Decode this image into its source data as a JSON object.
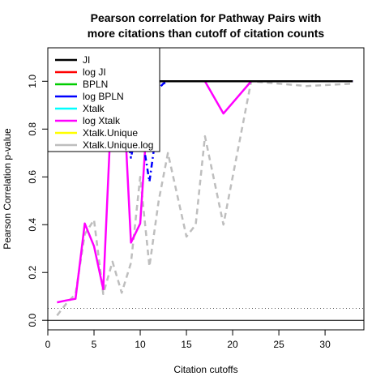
{
  "chart_data": {
    "type": "line",
    "title_lines": [
      "Pearson correlation for Pathway Pairs with",
      "more citations than cutoff of citation counts"
    ],
    "xlabel": "Citation cutoffs",
    "ylabel": "Pearson Correlation p-value",
    "xlim": [
      0,
      34.2
    ],
    "ylim": [
      -0.04,
      1.14
    ],
    "x_ticks": [
      0,
      5,
      10,
      15,
      20,
      25,
      30
    ],
    "y_ticks": [
      0.0,
      0.2,
      0.4,
      0.6,
      0.8,
      1.0
    ],
    "x_tick_labels": [
      "0",
      "5",
      "10",
      "15",
      "20",
      "25",
      "30"
    ],
    "y_tick_labels": [
      "0.0",
      "0.2",
      "0.4",
      "0.6",
      "0.8",
      "1.0"
    ],
    "reference_lines": [
      {
        "y": 0.05,
        "color": "#555555",
        "style": "dotted"
      },
      {
        "y": 0.0,
        "color": "#000000",
        "style": "solid"
      }
    ],
    "legend": {
      "position": "top-left",
      "entries": [
        "JI",
        "log JI",
        "BPLN",
        "log BPLN",
        "Xtalk",
        "log Xtalk",
        "Xtalk.Unique",
        "Xtalk.Unique.log"
      ]
    },
    "series": [
      {
        "name": "JI",
        "color": "#000000",
        "dash": "solid",
        "x": [
          12,
          33
        ],
        "y": [
          1.0,
          1.0
        ]
      },
      {
        "name": "log JI",
        "color": "#ff0000",
        "dash": "dashed",
        "x": [
          12,
          33
        ],
        "y": [
          1.0,
          1.0
        ]
      },
      {
        "name": "BPLN",
        "color": "#00cd00",
        "dash": "dotted",
        "x": [
          12,
          33
        ],
        "y": [
          1.0,
          1.0
        ]
      },
      {
        "name": "log BPLN",
        "color": "#0000ff",
        "dash": "dashdot",
        "x": [
          7,
          7.5,
          8,
          8.5,
          9,
          9.5,
          10,
          10.5,
          11,
          11.5,
          12,
          12.5,
          13,
          33
        ],
        "y": [
          0.97,
          0.99,
          0.98,
          0.8,
          0.68,
          0.78,
          0.95,
          0.7,
          0.58,
          0.72,
          0.97,
          0.99,
          1.0,
          1.0
        ]
      },
      {
        "name": "Xtalk",
        "color": "#00ffff",
        "dash": "dotted",
        "x": [
          12,
          14,
          16,
          18,
          20,
          22,
          24,
          26,
          28,
          30,
          33
        ],
        "y": [
          1.0,
          1.0,
          1.0,
          1.0,
          1.0,
          1.0,
          1.0,
          1.0,
          1.0,
          1.0,
          1.0
        ]
      },
      {
        "name": "log Xtalk",
        "color": "#ff00ff",
        "dash": "solid",
        "x": [
          1,
          2,
          3,
          4,
          5,
          6,
          7,
          8,
          8.5,
          9,
          10,
          11,
          12,
          17,
          19,
          22,
          33
        ],
        "y": [
          0.075,
          0.083,
          0.09,
          0.405,
          0.31,
          0.13,
          0.99,
          0.99,
          0.71,
          0.325,
          0.405,
          0.99,
          1.0,
          1.0,
          0.865,
          1.0,
          1.0
        ]
      },
      {
        "name": "Xtalk.Unique",
        "color": "#ffff00",
        "dash": "solid",
        "x": [
          12,
          33
        ],
        "y": [
          1.0,
          1.0
        ]
      },
      {
        "name": "Xtalk.Unique.log",
        "color": "#bebebe",
        "dash": "dashed",
        "x": [
          1,
          2,
          3,
          4,
          5,
          6,
          7,
          8,
          9,
          10,
          11,
          12,
          13,
          15,
          16,
          17,
          19,
          22,
          25,
          28,
          33
        ],
        "y": [
          0.02,
          0.07,
          0.11,
          0.36,
          0.42,
          0.11,
          0.245,
          0.115,
          0.24,
          0.6,
          0.225,
          0.5,
          0.7,
          0.35,
          0.4,
          0.77,
          0.4,
          1.0,
          0.99,
          0.98,
          0.99
        ]
      }
    ]
  }
}
